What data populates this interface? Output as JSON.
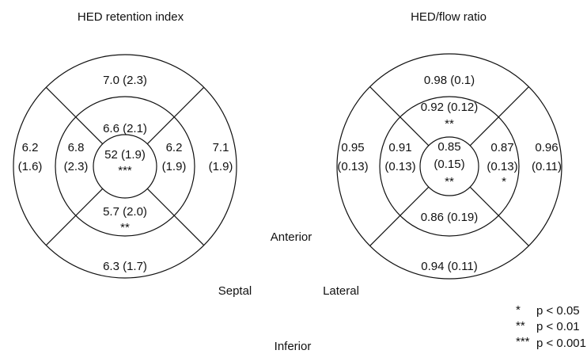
{
  "maps": [
    {
      "title": "HED retention index",
      "outer": {
        "top": [
          "7.0 (2.3)"
        ],
        "left": [
          "6.2",
          "(1.6)"
        ],
        "right": [
          "7.1",
          "(1.9)"
        ],
        "bottom": [
          "6.3 (1.7)"
        ]
      },
      "inner": {
        "top": [
          "6.6 (2.1)"
        ],
        "left": [
          "6.8",
          "(2.3)"
        ],
        "right": [
          "6.2",
          "(1.9)"
        ],
        "bottom": [
          "5.7 (2.0)",
          "**"
        ]
      },
      "center": [
        "52 (1.9)",
        "***"
      ]
    },
    {
      "title": "HED/flow ratio",
      "outer": {
        "top": [
          "0.98 (0.1)"
        ],
        "left": [
          "0.95",
          "(0.13)"
        ],
        "right": [
          "0.96",
          "(0.11)"
        ],
        "bottom": [
          "0.94 (0.11)"
        ]
      },
      "inner": {
        "top": [
          "0.92 (0.12)",
          "**"
        ],
        "left": [
          "0.91",
          "(0.13)"
        ],
        "right": [
          "0.87",
          "(0.13)",
          "*"
        ],
        "bottom": [
          "0.86 (0.19)"
        ]
      },
      "center": [
        "0.85",
        "(0.15)",
        "**"
      ]
    }
  ],
  "orientation": {
    "anterior": "Anterior",
    "septal": "Septal",
    "lateral": "Lateral",
    "inferior": "Inferior"
  },
  "legend": [
    {
      "symbol": "*",
      "text": "p < 0.05"
    },
    {
      "symbol": "**",
      "text": "p < 0.01"
    },
    {
      "symbol": "***",
      "text": "p < 0.001"
    }
  ]
}
